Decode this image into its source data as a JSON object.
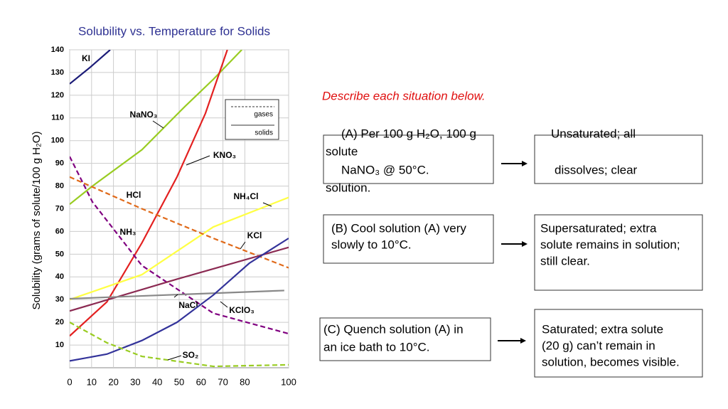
{
  "chart_data": {
    "type": "line",
    "title": "Solubility vs. Temperature for Solids",
    "ylabel": "Solubility (grams of solute/100 g H₂O)",
    "xlim": [
      0,
      100
    ],
    "ylim": [
      0,
      140
    ],
    "xticks": [
      0,
      10,
      20,
      30,
      40,
      50,
      60,
      70,
      80,
      100
    ],
    "yticks": [
      10,
      20,
      30,
      40,
      50,
      60,
      70,
      80,
      90,
      100,
      110,
      120,
      130,
      140
    ],
    "grid": true,
    "legend": [
      {
        "name": "gases",
        "style": "dashed"
      },
      {
        "name": "solids",
        "style": "solid"
      }
    ],
    "series": [
      {
        "name": "KI",
        "color": "#1c1c78",
        "style": "solid",
        "x": [
          0,
          9,
          18.5
        ],
        "values": [
          125,
          132,
          140
        ]
      },
      {
        "name": "NaNO₃",
        "color": "#99cc22",
        "style": "solid",
        "x": [
          0,
          10.4,
          33,
          52.6,
          65.6,
          78.6
        ],
        "values": [
          72,
          80,
          96,
          115,
          127,
          140
        ]
      },
      {
        "name": "KNO₃",
        "color": "#e32020",
        "style": "solid",
        "x": [
          0,
          17,
          33,
          49,
          62,
          72
        ],
        "values": [
          14,
          29,
          55,
          84,
          112,
          140
        ]
      },
      {
        "name": "NH₄Cl",
        "color": "#ffff44",
        "style": "solid",
        "x": [
          0,
          33,
          65.6,
          100
        ],
        "values": [
          30,
          41,
          62,
          75
        ]
      },
      {
        "name": "HCl",
        "color": "#e06a1a",
        "style": "dashed",
        "x": [
          0,
          33,
          65.6,
          100
        ],
        "values": [
          84,
          70,
          57,
          44
        ]
      },
      {
        "name": "NH₃",
        "color": "#800080",
        "style": "dashed",
        "x": [
          0,
          10.4,
          33,
          65.6,
          100
        ],
        "values": [
          93,
          73,
          45,
          24,
          15
        ]
      },
      {
        "name": "KCl",
        "color": "#8b2a52",
        "style": "solid",
        "x": [
          0,
          49,
          100
        ],
        "values": [
          25,
          39,
          53
        ]
      },
      {
        "name": "NaCl",
        "color": "#888888",
        "style": "solid",
        "x": [
          0,
          98
        ],
        "values": [
          30.4,
          34
        ]
      },
      {
        "name": "KClO₃",
        "color": "#33339a",
        "style": "solid",
        "x": [
          0,
          17,
          33,
          49,
          65.6,
          82,
          100
        ],
        "values": [
          3,
          6,
          12,
          20,
          32,
          46,
          57
        ]
      },
      {
        "name": "SO₂",
        "color": "#99cc22",
        "style": "dashed",
        "x": [
          0,
          17,
          33,
          65.6,
          100
        ],
        "values": [
          20,
          11,
          5,
          0.6,
          1.3
        ]
      }
    ]
  },
  "instruction": "Describe each situation below.",
  "situations": [
    {
      "prompt_lines": [
        "(A) Per 100 g H₂O, 100 g",
        "solute",
        "NaNO₃ @ 50°C.",
        "solution."
      ],
      "answer_lines": [
        "Unsaturated; all",
        "dissolves; clear"
      ]
    },
    {
      "prompt_lines": [
        "(B) Cool solution (A) very",
        "slowly to 10°C."
      ],
      "answer_lines": [
        "Supersaturated; extra",
        "solute remains in solution;",
        "still clear."
      ]
    },
    {
      "prompt_lines": [
        "(C) Quench solution (A) in",
        " an ice bath to 10°C."
      ],
      "answer_lines": [
        "Saturated; extra solute",
        "(20 g) can’t remain in",
        "solution, becomes visible."
      ]
    }
  ]
}
